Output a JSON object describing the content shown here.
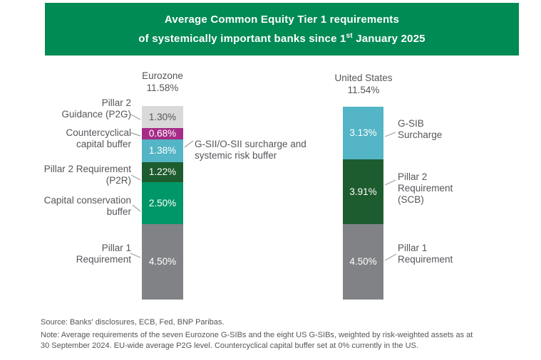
{
  "header": {
    "title_line1": "Average Common Equity Tier 1 requirements",
    "title_line2_before_sup": "of systemically important banks since 1",
    "title_line2_sup": "st",
    "title_line2_after_sup": " January 2025",
    "bg_color": "#008a54"
  },
  "chart_data": {
    "type": "bar",
    "stacked": true,
    "unit": "%",
    "title": "Average Common Equity Tier 1 requirements of systemically important banks since 1st January 2025",
    "grid": false,
    "legend_position": "labels-beside-bars",
    "ylim": [
      0,
      11.58
    ],
    "bars": [
      {
        "name": "Eurozone",
        "total": 11.58,
        "total_label": "11.58%",
        "segments": [
          {
            "label": "Pillar 2 Guidance (P2G)",
            "value": 1.3,
            "display": "1.30%",
            "color": "#d9d9d9",
            "text_color": "#54565a"
          },
          {
            "label": "Countercyclical capital buffer",
            "value": 0.68,
            "display": "0.68%",
            "color": "#a62c87",
            "text_color": "#ffffff"
          },
          {
            "label": "G-SII/O-SII surcharge and systemic risk buffer",
            "value": 1.38,
            "display": "1.38%",
            "color": "#53b5c5",
            "text_color": "#ffffff"
          },
          {
            "label": "Pillar 2 Requirement (P2R)",
            "value": 1.22,
            "display": "1.22%",
            "color": "#1d5c2e",
            "text_color": "#ffffff"
          },
          {
            "label": "Capital conservation buffer",
            "value": 2.5,
            "display": "2.50%",
            "color": "#009768",
            "text_color": "#ffffff"
          },
          {
            "label": "Pillar 1 Requirement",
            "value": 4.5,
            "display": "4.50%",
            "color": "#808285",
            "text_color": "#ffffff"
          }
        ]
      },
      {
        "name": "United States",
        "total": 11.54,
        "total_label": "11.54%",
        "segments": [
          {
            "label": "G-SIB Surcharge",
            "value": 3.13,
            "display": "3.13%",
            "color": "#53b5c5",
            "text_color": "#ffffff"
          },
          {
            "label": "Pillar 2 Requirement (SCB)",
            "value": 3.91,
            "display": "3.91%",
            "color": "#1d5c2e",
            "text_color": "#ffffff"
          },
          {
            "label": "Pillar 1 Requirement",
            "value": 4.5,
            "display": "4.50%",
            "color": "#808285",
            "text_color": "#ffffff"
          }
        ]
      }
    ]
  },
  "column_headers": [
    {
      "name": "Eurozone",
      "total_label": "11.58%"
    },
    {
      "name": "United States",
      "total_label": "11.54%"
    }
  ],
  "side_labels": {
    "eurozone_left": [
      {
        "lines": [
          "Pillar 2",
          "Guidance (P2G)"
        ]
      },
      {
        "lines": [
          "Countercyclical",
          "capital buffer"
        ]
      },
      {
        "lines": [
          "Pillar 2 Requirement",
          "(P2R)"
        ]
      },
      {
        "lines": [
          "Capital conservation",
          "buffer"
        ]
      },
      {
        "lines": [
          "Pillar 1",
          "Requirement"
        ]
      }
    ],
    "eurozone_right": {
      "lines": [
        "G-SII/O-SII surcharge and",
        "systemic risk buffer"
      ]
    },
    "us_right": [
      {
        "lines": [
          "G-SIB",
          "Surcharge"
        ]
      },
      {
        "lines": [
          "Pillar 2",
          "Requirement",
          "(SCB)"
        ]
      },
      {
        "lines": [
          "Pillar 1",
          "Requirement"
        ]
      }
    ]
  },
  "footer": {
    "source": "Source: Banks' disclosures, ECB, Fed, BNP Paribas.",
    "note_line1": "Note: Average requirements of the seven Eurozone G-SIBs and the eight US G-SIBs, weighted by risk-weighted assets as at",
    "note_line2": "30 September 2024. EU-wide average P2G level. Countercyclical capital buffer set at 0% currently in the US."
  },
  "colors": {
    "header_green": "#008a54",
    "text_gray": "#54565a",
    "connector_gray": "#a0a1a3",
    "p2g_light_gray": "#d9d9d9",
    "ccyb_magenta": "#a62c87",
    "surcharge_teal": "#53b5c5",
    "p2r_dark_green": "#1d5c2e",
    "ccb_green": "#009768",
    "pillar1_gray": "#808285"
  }
}
